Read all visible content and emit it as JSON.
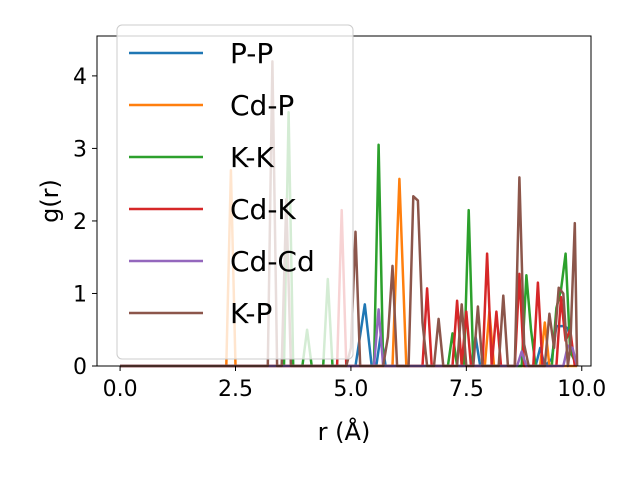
{
  "chart_data": {
    "type": "line",
    "xlabel": "r (Å)",
    "ylabel": "g(r)",
    "xlim": [
      -0.5,
      10.2
    ],
    "ylim": [
      0,
      4.55
    ],
    "xticks": [
      "0.0",
      "2.5",
      "5.0",
      "7.5",
      "10.0"
    ],
    "xtick_values": [
      0,
      2.5,
      5,
      7.5,
      10
    ],
    "yticks": [
      "0",
      "1",
      "2",
      "3",
      "4"
    ],
    "ytick_values": [
      0,
      1,
      2,
      3,
      4
    ],
    "grid": false,
    "legend_position": "top-left",
    "series": [
      {
        "name": "P-P",
        "color": "#1f77b4",
        "points": [
          [
            0,
            0
          ],
          [
            5.1,
            0
          ],
          [
            5.3,
            0.85
          ],
          [
            5.45,
            0
          ],
          [
            5.55,
            0
          ],
          [
            5.65,
            0.45
          ],
          [
            5.75,
            0
          ],
          [
            7.6,
            0
          ],
          [
            7.7,
            0.4
          ],
          [
            7.8,
            0
          ],
          [
            9.0,
            0
          ],
          [
            9.1,
            0.25
          ],
          [
            9.2,
            0
          ],
          [
            9.35,
            0.1
          ],
          [
            9.45,
            0.55
          ],
          [
            9.6,
            0.55
          ],
          [
            9.7,
            0.52
          ],
          [
            9.8,
            0.2
          ],
          [
            9.9,
            0
          ]
        ]
      },
      {
        "name": "Cd-P",
        "color": "#ff7f0e",
        "points": [
          [
            0,
            0
          ],
          [
            2.3,
            0
          ],
          [
            2.4,
            2.7
          ],
          [
            2.5,
            0
          ],
          [
            5.9,
            0
          ],
          [
            6.05,
            2.58
          ],
          [
            6.2,
            0
          ],
          [
            7.9,
            0
          ],
          [
            8.0,
            0.75
          ],
          [
            8.1,
            0
          ],
          [
            9.1,
            0
          ],
          [
            9.2,
            0.6
          ],
          [
            9.3,
            0
          ],
          [
            9.9,
            0
          ]
        ]
      },
      {
        "name": "K-K",
        "color": "#2ca02c",
        "points": [
          [
            0,
            0
          ],
          [
            3.55,
            0
          ],
          [
            3.65,
            3.5
          ],
          [
            3.75,
            0
          ],
          [
            3.95,
            0
          ],
          [
            4.05,
            0.5
          ],
          [
            4.15,
            0
          ],
          [
            4.4,
            0
          ],
          [
            4.5,
            1.2
          ],
          [
            4.6,
            0
          ],
          [
            5.5,
            0
          ],
          [
            5.55,
            1.5
          ],
          [
            5.6,
            3.05
          ],
          [
            5.7,
            0
          ],
          [
            7.1,
            0
          ],
          [
            7.2,
            0.45
          ],
          [
            7.3,
            0
          ],
          [
            7.45,
            0
          ],
          [
            7.55,
            2.15
          ],
          [
            7.65,
            0
          ],
          [
            8.7,
            0
          ],
          [
            8.8,
            1.25
          ],
          [
            8.9,
            0.5
          ],
          [
            9.0,
            0
          ],
          [
            9.35,
            0
          ],
          [
            9.45,
            0.8
          ],
          [
            9.55,
            1.05
          ],
          [
            9.65,
            1.55
          ],
          [
            9.75,
            0.2
          ],
          [
            9.9,
            0
          ]
        ]
      },
      {
        "name": "Cd-K",
        "color": "#d62728",
        "points": [
          [
            0,
            0
          ],
          [
            4.7,
            0
          ],
          [
            4.8,
            2.15
          ],
          [
            4.9,
            0
          ],
          [
            6.55,
            0
          ],
          [
            6.65,
            1.07
          ],
          [
            6.75,
            0
          ],
          [
            7.2,
            0
          ],
          [
            7.3,
            0.9
          ],
          [
            7.4,
            0
          ],
          [
            7.5,
            0.75
          ],
          [
            7.6,
            0
          ],
          [
            7.85,
            0
          ],
          [
            7.95,
            1.55
          ],
          [
            8.05,
            0
          ],
          [
            8.15,
            0.75
          ],
          [
            8.25,
            0
          ],
          [
            8.55,
            0
          ],
          [
            8.65,
            1.27
          ],
          [
            8.75,
            0
          ],
          [
            8.95,
            0
          ],
          [
            9.05,
            1.15
          ],
          [
            9.15,
            0
          ],
          [
            9.45,
            0
          ],
          [
            9.55,
            0.95
          ],
          [
            9.65,
            0.35
          ],
          [
            9.75,
            0.5
          ],
          [
            9.85,
            0
          ]
        ]
      },
      {
        "name": "Cd-Cd",
        "color": "#9467bd",
        "points": [
          [
            0,
            0
          ],
          [
            5.5,
            0
          ],
          [
            5.6,
            0.78
          ],
          [
            5.7,
            0
          ],
          [
            8.6,
            0
          ],
          [
            8.7,
            0.2
          ],
          [
            8.8,
            0
          ],
          [
            9.6,
            0
          ],
          [
            9.7,
            0.28
          ],
          [
            9.8,
            0.25
          ],
          [
            9.9,
            0
          ]
        ]
      },
      {
        "name": "K-P",
        "color": "#8c564b",
        "points": [
          [
            0,
            0
          ],
          [
            3.2,
            0
          ],
          [
            3.3,
            4.2
          ],
          [
            3.4,
            0
          ],
          [
            3.5,
            0
          ],
          [
            3.6,
            2.3
          ],
          [
            3.7,
            0
          ],
          [
            4.9,
            0
          ],
          [
            5.0,
            0.25
          ],
          [
            5.1,
            1.85
          ],
          [
            5.2,
            0
          ],
          [
            5.7,
            0
          ],
          [
            5.8,
            0.4
          ],
          [
            5.9,
            1.38
          ],
          [
            6.0,
            0
          ],
          [
            6.25,
            0
          ],
          [
            6.35,
            2.34
          ],
          [
            6.45,
            2.28
          ],
          [
            6.55,
            0.6
          ],
          [
            6.65,
            0
          ],
          [
            6.8,
            0
          ],
          [
            6.9,
            0.65
          ],
          [
            7.0,
            0
          ],
          [
            7.3,
            0
          ],
          [
            7.4,
            0.85
          ],
          [
            7.5,
            0
          ],
          [
            7.65,
            0
          ],
          [
            7.75,
            0.82
          ],
          [
            7.85,
            0
          ],
          [
            8.2,
            0
          ],
          [
            8.3,
            0.97
          ],
          [
            8.4,
            0
          ],
          [
            8.55,
            0
          ],
          [
            8.65,
            2.6
          ],
          [
            8.75,
            0.3
          ],
          [
            8.85,
            0
          ],
          [
            9.2,
            0
          ],
          [
            9.3,
            0.72
          ],
          [
            9.4,
            0.25
          ],
          [
            9.5,
            1.08
          ],
          [
            9.6,
            1.0
          ],
          [
            9.7,
            0
          ],
          [
            9.75,
            0.25
          ],
          [
            9.85,
            1.97
          ],
          [
            9.9,
            0
          ]
        ]
      }
    ]
  }
}
